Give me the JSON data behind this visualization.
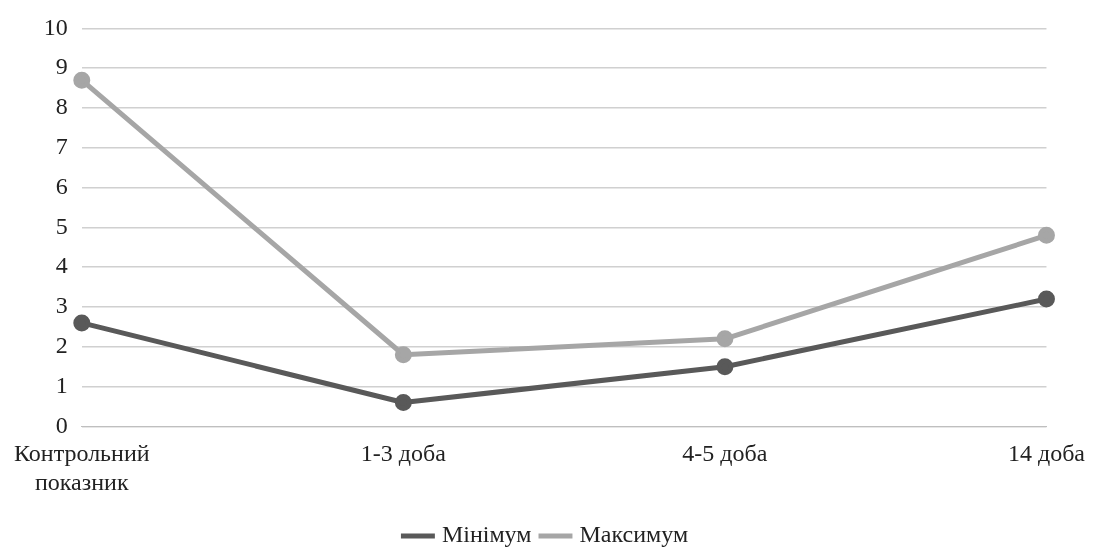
{
  "chart_data": {
    "type": "line",
    "categories": [
      "Контрольний показник",
      "1-3 доба",
      "4-5 доба",
      "14 доба"
    ],
    "series": [
      {
        "name": "Мінімум",
        "color": "#595959",
        "values": [
          2.6,
          0.6,
          1.5,
          3.2
        ]
      },
      {
        "name": "Максимум",
        "color": "#a6a6a6",
        "values": [
          8.7,
          1.8,
          2.2,
          4.8
        ]
      }
    ],
    "ylim": [
      0,
      10
    ],
    "yticks": [
      0,
      1,
      2,
      3,
      4,
      5,
      6,
      7,
      8,
      9,
      10
    ],
    "grid": "y",
    "legend": "bottom",
    "marker": "circle",
    "line_style": "solid"
  }
}
